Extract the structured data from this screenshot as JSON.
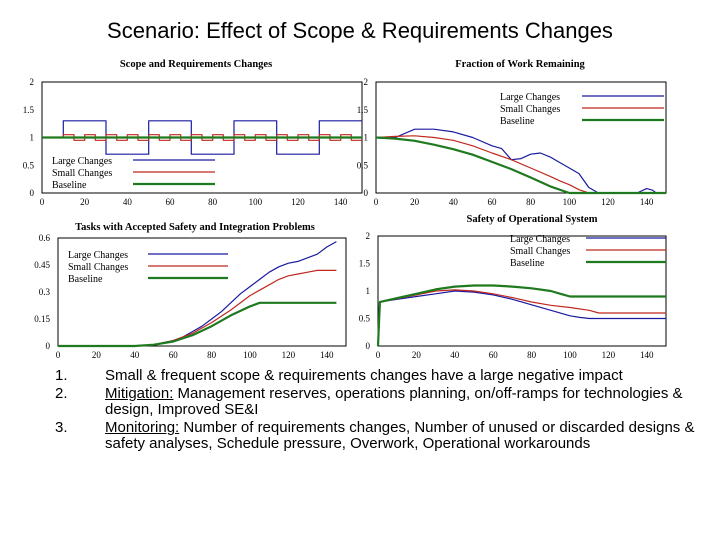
{
  "slide": {
    "title": "Scenario: Effect of Scope & Requirements Changes"
  },
  "colors": {
    "large": "#1a1aa0",
    "small": "#c0281e",
    "baseline": "#1f7a1f"
  },
  "chart_data": [
    {
      "id": "p1",
      "type": "line",
      "title": "Scope and Requirements Changes",
      "xlim": [
        0,
        150
      ],
      "ylim": [
        0,
        2
      ],
      "xticks": [
        "0",
        "20",
        "40",
        "60",
        "80",
        "100",
        "120",
        "140"
      ],
      "yticks": [
        "0",
        "0.5",
        "1",
        "1.5",
        "2"
      ],
      "legend": [
        "Large Changes",
        "Small Changes",
        "Baseline"
      ],
      "series": [
        {
          "name": "Large Changes",
          "key": "large",
          "x": [
            0,
            10,
            10,
            30,
            30,
            50,
            50,
            70,
            70,
            90,
            90,
            110,
            110,
            130,
            130,
            150
          ],
          "y": [
            1,
            1,
            1.3,
            1.3,
            0.7,
            0.7,
            1.3,
            1.3,
            0.7,
            0.7,
            1.3,
            1.3,
            0.7,
            0.7,
            1.3,
            1.3
          ]
        },
        {
          "name": "Small Changes",
          "key": "small",
          "x": [
            0,
            10,
            10,
            15,
            15,
            20,
            20,
            25,
            25,
            30,
            30,
            35,
            35,
            40,
            40,
            45,
            45,
            50,
            50,
            55,
            55,
            60,
            60,
            65,
            65,
            70,
            70,
            75,
            75,
            80,
            80,
            85,
            85,
            90,
            90,
            95,
            95,
            100,
            100,
            105,
            105,
            110,
            110,
            115,
            115,
            120,
            120,
            125,
            125,
            130,
            130,
            135,
            135,
            140,
            140,
            145,
            145,
            150
          ],
          "y": [
            1,
            1,
            1.05,
            1.05,
            0.95,
            0.95,
            1.05,
            1.05,
            0.95,
            0.95,
            1.05,
            1.05,
            0.95,
            0.95,
            1.05,
            1.05,
            0.95,
            0.95,
            1.05,
            1.05,
            0.95,
            0.95,
            1.05,
            1.05,
            0.95,
            0.95,
            1.05,
            1.05,
            0.95,
            0.95,
            1.05,
            1.05,
            0.95,
            0.95,
            1.05,
            1.05,
            0.95,
            0.95,
            1.05,
            1.05,
            0.95,
            0.95,
            1.05,
            1.05,
            0.95,
            0.95,
            1.05,
            1.05,
            0.95,
            0.95,
            1.05,
            1.05,
            0.95,
            0.95,
            1.05,
            1.05,
            0.95,
            0.95
          ]
        },
        {
          "name": "Baseline",
          "key": "baseline",
          "x": [
            0,
            150
          ],
          "y": [
            1,
            1
          ]
        }
      ]
    },
    {
      "id": "p2",
      "type": "line",
      "title": "Fraction of Work Remaining",
      "xlim": [
        0,
        150
      ],
      "ylim": [
        0,
        2
      ],
      "xticks": [
        "0",
        "20",
        "40",
        "60",
        "80",
        "100",
        "120",
        "140"
      ],
      "yticks": [
        "0",
        "0.5",
        "1",
        "1.5",
        "2"
      ],
      "legend": [
        "Large Changes",
        "Small Changes",
        "Baseline"
      ],
      "series": [
        {
          "name": "Large Changes",
          "key": "large",
          "x": [
            0,
            5,
            10,
            20,
            30,
            40,
            50,
            60,
            65,
            70,
            75,
            80,
            85,
            90,
            95,
            100,
            105,
            110,
            115,
            120,
            125,
            130,
            135,
            140,
            143,
            145,
            150
          ],
          "y": [
            1,
            1,
            1,
            1.15,
            1.15,
            1.1,
            1.0,
            0.85,
            0.8,
            0.6,
            0.62,
            0.7,
            0.72,
            0.65,
            0.55,
            0.45,
            0.35,
            0.1,
            0,
            0,
            0,
            0,
            0,
            0.08,
            0.05,
            0,
            0
          ]
        },
        {
          "name": "Small Changes",
          "key": "small",
          "x": [
            0,
            10,
            20,
            30,
            40,
            50,
            60,
            70,
            80,
            90,
            95,
            100,
            105,
            110,
            115,
            150
          ],
          "y": [
            1,
            1.02,
            1.03,
            1.0,
            0.95,
            0.85,
            0.72,
            0.6,
            0.45,
            0.3,
            0.22,
            0.15,
            0.06,
            0,
            0,
            0
          ]
        },
        {
          "name": "Baseline",
          "key": "baseline",
          "x": [
            0,
            10,
            20,
            30,
            40,
            50,
            60,
            70,
            80,
            90,
            100,
            150
          ],
          "y": [
            1,
            0.98,
            0.94,
            0.87,
            0.79,
            0.69,
            0.56,
            0.43,
            0.28,
            0.12,
            0,
            0
          ]
        }
      ]
    },
    {
      "id": "p3",
      "type": "line",
      "title": "Tasks with Accepted Safety and Integration Problems",
      "xlim": [
        0,
        150
      ],
      "ylim": [
        0,
        0.6
      ],
      "xticks": [
        "0",
        "20",
        "40",
        "60",
        "80",
        "100",
        "120",
        "140"
      ],
      "yticks": [
        "0",
        "0.15",
        "0.3",
        "0.45",
        "0.6"
      ],
      "legend": [
        "Large Changes",
        "Small Changes",
        "Baseline"
      ],
      "series": [
        {
          "name": "Large Changes",
          "key": "large",
          "x": [
            0,
            40,
            50,
            60,
            65,
            70,
            75,
            80,
            85,
            90,
            95,
            100,
            105,
            110,
            115,
            120,
            125,
            130,
            135,
            140,
            145
          ],
          "y": [
            0,
            0,
            0.008,
            0.03,
            0.05,
            0.08,
            0.11,
            0.15,
            0.19,
            0.24,
            0.29,
            0.33,
            0.37,
            0.41,
            0.44,
            0.46,
            0.47,
            0.49,
            0.51,
            0.55,
            0.58
          ]
        },
        {
          "name": "Small Changes",
          "key": "small",
          "x": [
            0,
            40,
            50,
            60,
            70,
            80,
            90,
            100,
            105,
            110,
            115,
            120,
            125,
            130,
            135,
            140,
            145
          ],
          "y": [
            0,
            0,
            0.008,
            0.03,
            0.07,
            0.13,
            0.2,
            0.28,
            0.31,
            0.34,
            0.37,
            0.39,
            0.4,
            0.41,
            0.42,
            0.42,
            0.42
          ]
        },
        {
          "name": "Baseline",
          "key": "baseline",
          "x": [
            0,
            40,
            50,
            60,
            70,
            80,
            90,
            100,
            105,
            110,
            145
          ],
          "y": [
            0,
            0,
            0.007,
            0.025,
            0.06,
            0.11,
            0.17,
            0.22,
            0.24,
            0.24,
            0.24
          ]
        }
      ]
    },
    {
      "id": "p4",
      "type": "line",
      "title": "Safety of Operational System",
      "xlim": [
        0,
        150
      ],
      "ylim": [
        0,
        2
      ],
      "xticks": [
        "0",
        "20",
        "40",
        "60",
        "80",
        "100",
        "120",
        "140"
      ],
      "yticks": [
        "0",
        "0.5",
        "1",
        "1.5",
        "2"
      ],
      "legend": [
        "Large Changes",
        "Small Changes",
        "Baseline"
      ],
      "series": [
        {
          "name": "Large Changes",
          "key": "large",
          "x": [
            0,
            1,
            10,
            20,
            30,
            40,
            50,
            60,
            70,
            80,
            90,
            100,
            105,
            110,
            115,
            120,
            130,
            140,
            150
          ],
          "y": [
            0,
            0.8,
            0.85,
            0.9,
            0.95,
            1.0,
            0.98,
            0.93,
            0.85,
            0.75,
            0.65,
            0.55,
            0.52,
            0.5,
            0.5,
            0.5,
            0.5,
            0.5,
            0.5
          ]
        },
        {
          "name": "Small Changes",
          "key": "small",
          "x": [
            0,
            1,
            10,
            20,
            30,
            40,
            50,
            60,
            70,
            80,
            90,
            100,
            110,
            115,
            120,
            150
          ],
          "y": [
            0,
            0.8,
            0.86,
            0.93,
            1.0,
            1.02,
            1.0,
            0.95,
            0.88,
            0.8,
            0.74,
            0.7,
            0.65,
            0.6,
            0.6,
            0.6
          ]
        },
        {
          "name": "Baseline",
          "key": "baseline",
          "x": [
            0,
            1,
            10,
            20,
            30,
            40,
            50,
            60,
            70,
            80,
            90,
            95,
            100,
            110,
            150
          ],
          "y": [
            0,
            0.8,
            0.87,
            0.95,
            1.03,
            1.08,
            1.1,
            1.1,
            1.08,
            1.05,
            1.0,
            0.95,
            0.9,
            0.9,
            0.9
          ]
        }
      ]
    }
  ],
  "notes": [
    {
      "num": "1.",
      "lead": "",
      "text": "Small & frequent scope & requirements changes have a large negative impact"
    },
    {
      "num": "2.",
      "lead": "Mitigation:",
      "text": " Management reserves, operations planning, on/off-ramps for technologies & design, Improved SE&I"
    },
    {
      "num": "3.",
      "lead": "Monitoring:",
      "text": " Number of requirements changes, Number of unused or discarded designs & safety analyses, Schedule pressure, Overwork, Operational workarounds"
    }
  ]
}
